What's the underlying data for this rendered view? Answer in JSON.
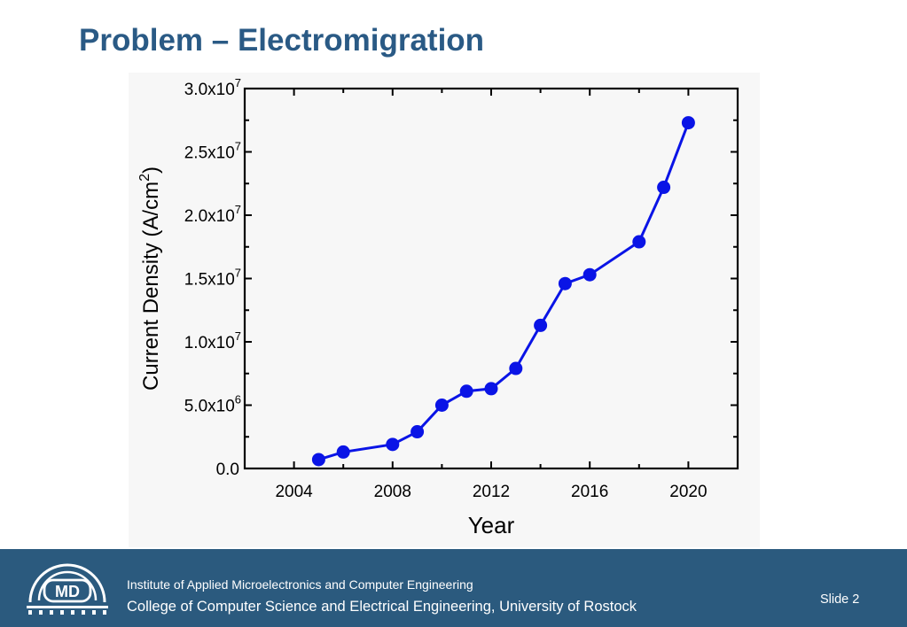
{
  "slide": {
    "title": "Problem – Electromigration",
    "slide_number": "Slide 2"
  },
  "footer": {
    "logo_text": "MD",
    "line1": "Institute of Applied Microelectronics and Computer Engineering",
    "line2": "College of Computer Science and Electrical Engineering, University of Rostock"
  },
  "colors": {
    "title": "#2a5a85",
    "footer_bg": "#2b5a7e",
    "series": "#0a14e6"
  },
  "chart_data": {
    "type": "line",
    "xlabel": "Year",
    "ylabel": "Current Density (A/cm²)",
    "xlim": [
      2002,
      2022
    ],
    "ylim": [
      0,
      30000000
    ],
    "x_ticks": [
      2004,
      2008,
      2012,
      2016,
      2020
    ],
    "y_ticks": [
      {
        "value": 0,
        "mantissa": "0.0",
        "exp": ""
      },
      {
        "value": 5000000,
        "mantissa": "5.0x10",
        "exp": "6"
      },
      {
        "value": 10000000,
        "mantissa": "1.0x10",
        "exp": "7"
      },
      {
        "value": 15000000,
        "mantissa": "1.5x10",
        "exp": "7"
      },
      {
        "value": 20000000,
        "mantissa": "2.0x10",
        "exp": "7"
      },
      {
        "value": 25000000,
        "mantissa": "2.5x10",
        "exp": "7"
      },
      {
        "value": 30000000,
        "mantissa": "3.0x10",
        "exp": "7"
      }
    ],
    "grid": false,
    "series": [
      {
        "x": [
          2005,
          2006,
          2008,
          2009,
          2010,
          2011,
          2012,
          2013,
          2014,
          2015,
          2016,
          2018,
          2019,
          2020
        ],
        "y": [
          700000,
          1300000,
          1900000,
          2900000,
          5000000,
          6100000,
          6300000,
          7900000,
          11300000,
          14600000,
          15300000,
          17900000,
          22200000,
          27300000
        ]
      }
    ]
  }
}
